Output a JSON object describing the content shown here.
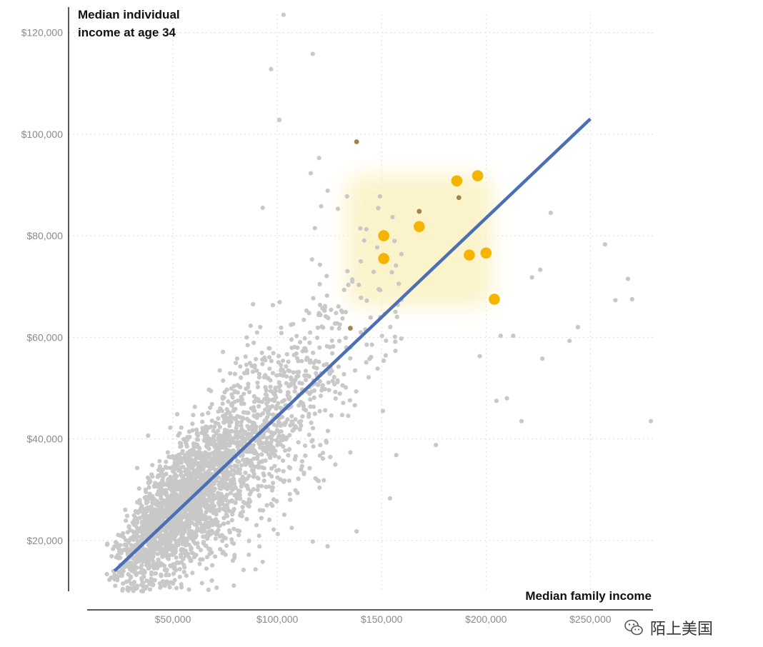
{
  "chart_data": {
    "type": "scatter",
    "title": "",
    "xlabel": "Median family income",
    "ylabel_lines": [
      "Median individual",
      "income at age 34"
    ],
    "xlim": [
      0,
      280000
    ],
    "ylim": [
      10000,
      125000
    ],
    "x_ticks": [
      {
        "value": 50000,
        "label": "$50,000"
      },
      {
        "value": 100000,
        "label": "$100,000"
      },
      {
        "value": 150000,
        "label": "$150,000"
      },
      {
        "value": 200000,
        "label": "$200,000"
      },
      {
        "value": 250000,
        "label": "$250,000"
      }
    ],
    "y_ticks": [
      {
        "value": 20000,
        "label": "$20,000"
      },
      {
        "value": 40000,
        "label": "$40,000"
      },
      {
        "value": 60000,
        "label": "$60,000"
      },
      {
        "value": 80000,
        "label": "$80,000"
      },
      {
        "value": 100000,
        "label": "$100,000"
      },
      {
        "value": 120000,
        "label": "$120,000"
      }
    ],
    "grid": true,
    "colors": {
      "points": "#c8c8c8",
      "highlight": "#f5b400",
      "brown": "#a0824a",
      "trend": "#4a6fb5",
      "shade": "#fbf3c8",
      "axis": "#222222",
      "grid": "#dcdcdc"
    },
    "trend_line": {
      "x": [
        22000,
        250000
      ],
      "y": [
        14000,
        103000
      ]
    },
    "highlight_region": {
      "x": [
        133000,
        203000
      ],
      "y": [
        66000,
        92000
      ]
    },
    "highlight_points": [
      {
        "x": 151000,
        "y": 80000
      },
      {
        "x": 151000,
        "y": 75500
      },
      {
        "x": 168000,
        "y": 81800
      },
      {
        "x": 186000,
        "y": 90800
      },
      {
        "x": 196000,
        "y": 91800
      },
      {
        "x": 192000,
        "y": 76200
      },
      {
        "x": 200000,
        "y": 76600
      },
      {
        "x": 204000,
        "y": 67500
      }
    ],
    "brown_points": [
      {
        "x": 138000,
        "y": 98500
      },
      {
        "x": 168000,
        "y": 84800
      },
      {
        "x": 187000,
        "y": 87500
      },
      {
        "x": 135000,
        "y": 61800
      }
    ],
    "outlier_points": [
      {
        "x": 103000,
        "y": 123500
      },
      {
        "x": 117000,
        "y": 115800
      },
      {
        "x": 97000,
        "y": 112800
      },
      {
        "x": 101000,
        "y": 102800
      },
      {
        "x": 120000,
        "y": 95300
      },
      {
        "x": 116000,
        "y": 92300
      },
      {
        "x": 93000,
        "y": 85500
      },
      {
        "x": 121000,
        "y": 85800
      },
      {
        "x": 118000,
        "y": 81500
      },
      {
        "x": 129000,
        "y": 85300
      },
      {
        "x": 231000,
        "y": 84500
      },
      {
        "x": 257000,
        "y": 78300
      },
      {
        "x": 268000,
        "y": 71500
      },
      {
        "x": 270000,
        "y": 67500
      },
      {
        "x": 262000,
        "y": 67300
      },
      {
        "x": 244000,
        "y": 62000
      },
      {
        "x": 279000,
        "y": 43500
      },
      {
        "x": 226000,
        "y": 73300
      },
      {
        "x": 222000,
        "y": 71800
      },
      {
        "x": 227000,
        "y": 55800
      },
      {
        "x": 217000,
        "y": 43500
      },
      {
        "x": 205000,
        "y": 47500
      },
      {
        "x": 210000,
        "y": 48000
      },
      {
        "x": 213000,
        "y": 60300
      },
      {
        "x": 207000,
        "y": 60300
      },
      {
        "x": 197000,
        "y": 56300
      },
      {
        "x": 176000,
        "y": 38800
      },
      {
        "x": 157000,
        "y": 36800
      },
      {
        "x": 154000,
        "y": 28300
      },
      {
        "x": 138000,
        "y": 21800
      },
      {
        "x": 117000,
        "y": 19800
      },
      {
        "x": 93000,
        "y": 15800
      },
      {
        "x": 67000,
        "y": 10300
      },
      {
        "x": 240000,
        "y": 59300
      }
    ],
    "scatter_generator": {
      "count": 3000,
      "trend_slope": 0.39,
      "trend_intercept": 5400,
      "x_median": 62000,
      "x_spread": 0.42,
      "residual_sd": 4800,
      "x_min": 18000,
      "x_max": 160000,
      "y_min": 10000
    }
  },
  "watermark": {
    "text": "陌上美国",
    "icon": "wechat-icon"
  }
}
